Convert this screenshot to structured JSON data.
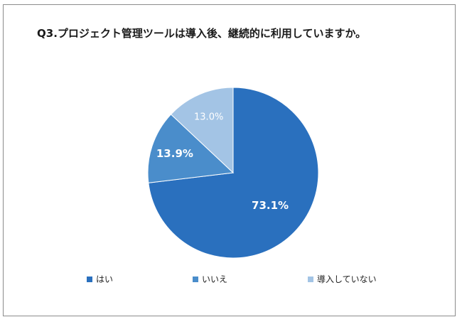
{
  "chart_data": {
    "type": "pie",
    "title": "Q3.プロジェクト管理ツールは導入後、継続的に利用していますか。",
    "slices": [
      {
        "label": "はい",
        "value": 73.1,
        "display": "73.1%",
        "color": "#2a70be",
        "label_color": "#ffffff",
        "label_bold": true
      },
      {
        "label": "いいえ",
        "value": 13.9,
        "display": "13.9%",
        "color": "#4a8dcb",
        "label_color": "#ffffff",
        "label_bold": true
      },
      {
        "label": "導入していない",
        "value": 13.0,
        "display": "13.0%",
        "color": "#a3c4e5",
        "label_color": "#ffffff",
        "label_bold": false
      }
    ],
    "start": "12 o'clock",
    "direction": "clockwise",
    "legend_position": "bottom"
  }
}
